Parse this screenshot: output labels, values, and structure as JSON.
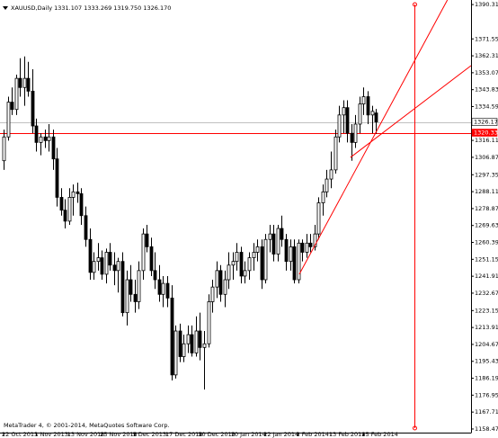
{
  "chart_data": {
    "type": "candlestick",
    "title": "XAUUSD,Daily  1331.107 1333.269 1319.750 1326.170",
    "footer": "MetaTrader 4, © 2001-2014, MetaQuotes Software Corp.",
    "categories": [
      "22 Oct 2013",
      null,
      null,
      null,
      null,
      null,
      null,
      null,
      "1 Nov 2013",
      null,
      null,
      null,
      null,
      null,
      null,
      null,
      "13 Nov 2013",
      null,
      null,
      null,
      null,
      null,
      null,
      null,
      "25 Nov 2013",
      null,
      null,
      null,
      null,
      null,
      null,
      null,
      "5 Dec 2013",
      null,
      null,
      null,
      null,
      null,
      null,
      null,
      "17 Dec 2013",
      null,
      null,
      null,
      null,
      null,
      null,
      null,
      "30 Dec 2013",
      null,
      null,
      null,
      null,
      null,
      null,
      null,
      "10 Jan 2014",
      null,
      null,
      null,
      null,
      null,
      null,
      null,
      "22 Jan 2014",
      null,
      null,
      null,
      null,
      null,
      null,
      null,
      "3 Feb 2014",
      null,
      null,
      null,
      null,
      null,
      null,
      null,
      "13 Feb 2014",
      null,
      null,
      null,
      null,
      null,
      null,
      null,
      "25 Feb 2014",
      null,
      null,
      null
    ],
    "open": [
      1305,
      1318,
      1337,
      1333,
      1350,
      1345,
      1350,
      1343,
      1324,
      1315,
      1318,
      1316,
      1318,
      1306,
      1285,
      1278,
      1272,
      1285,
      1288,
      1287,
      1275,
      1262,
      1244,
      1250,
      1252,
      1243,
      1255,
      1248,
      1245,
      1250,
      1222,
      1240,
      1232,
      1228,
      1245,
      1265,
      1258,
      1245,
      1240,
      1232,
      1238,
      1230,
      1188,
      1212,
      1198,
      1205,
      1210,
      1200,
      1212,
      1203,
      1205,
      1228,
      1236,
      1245,
      1232,
      1240,
      1248,
      1250,
      1255,
      1242,
      1245,
      1252,
      1255,
      1258,
      1240,
      1262,
      1265,
      1254,
      1268,
      1262,
      1250,
      1258,
      1240,
      1260,
      1255,
      1260,
      1258,
      1265,
      1282,
      1288,
      1295,
      1300,
      1318,
      1330,
      1334,
      1320,
      1315,
      1325,
      1336,
      1340,
      1330,
      1331.107
    ],
    "high": [
      1322,
      1340,
      1345,
      1352,
      1361,
      1362,
      1359,
      1355,
      1328,
      1320,
      1322,
      1325,
      1322,
      1312,
      1290,
      1284,
      1290,
      1292,
      1293,
      1290,
      1280,
      1268,
      1255,
      1260,
      1256,
      1257,
      1260,
      1255,
      1252,
      1255,
      1245,
      1248,
      1240,
      1250,
      1268,
      1270,
      1263,
      1255,
      1248,
      1242,
      1242,
      1237,
      1215,
      1216,
      1210,
      1215,
      1215,
      1220,
      1222,
      1212,
      1232,
      1240,
      1250,
      1248,
      1245,
      1255,
      1255,
      1260,
      1258,
      1250,
      1255,
      1260,
      1262,
      1262,
      1265,
      1270,
      1270,
      1270,
      1275,
      1265,
      1262,
      1262,
      1262,
      1262,
      1265,
      1265,
      1270,
      1285,
      1292,
      1300,
      1310,
      1322,
      1335,
      1338,
      1338,
      1325,
      1330,
      1340,
      1345,
      1343,
      1335,
      1333.269
    ],
    "low": [
      1300,
      1316,
      1330,
      1330,
      1340,
      1335,
      1340,
      1320,
      1310,
      1308,
      1312,
      1310,
      1300,
      1280,
      1275,
      1268,
      1270,
      1275,
      1282,
      1270,
      1258,
      1240,
      1240,
      1245,
      1240,
      1238,
      1245,
      1237,
      1233,
      1220,
      1215,
      1228,
      1222,
      1224,
      1240,
      1255,
      1242,
      1235,
      1228,
      1225,
      1225,
      1185,
      1186,
      1195,
      1195,
      1200,
      1198,
      1198,
      1196,
      1180,
      1203,
      1222,
      1230,
      1228,
      1225,
      1235,
      1240,
      1245,
      1238,
      1238,
      1240,
      1245,
      1250,
      1235,
      1238,
      1255,
      1250,
      1250,
      1258,
      1245,
      1245,
      1238,
      1238,
      1250,
      1252,
      1255,
      1256,
      1262,
      1275,
      1285,
      1290,
      1298,
      1315,
      1320,
      1315,
      1305,
      1312,
      1320,
      1330,
      1325,
      1320,
      1319.75
    ],
    "close": [
      1318,
      1337,
      1333,
      1350,
      1345,
      1350,
      1343,
      1324,
      1315,
      1318,
      1316,
      1318,
      1306,
      1285,
      1278,
      1272,
      1285,
      1288,
      1287,
      1275,
      1262,
      1244,
      1250,
      1252,
      1243,
      1255,
      1248,
      1245,
      1250,
      1222,
      1240,
      1232,
      1228,
      1245,
      1265,
      1258,
      1245,
      1240,
      1232,
      1238,
      1230,
      1188,
      1212,
      1198,
      1205,
      1210,
      1200,
      1212,
      1203,
      1205,
      1228,
      1236,
      1245,
      1232,
      1240,
      1248,
      1250,
      1255,
      1242,
      1245,
      1252,
      1255,
      1258,
      1240,
      1262,
      1265,
      1254,
      1268,
      1262,
      1250,
      1258,
      1240,
      1260,
      1255,
      1260,
      1258,
      1265,
      1282,
      1288,
      1295,
      1300,
      1318,
      1330,
      1334,
      1320,
      1315,
      1325,
      1336,
      1340,
      1330,
      1332,
      1326.17
    ],
    "up_color": "#ffffff",
    "down_color": "#000000",
    "ylim": [
      1156.0,
      1392.8
    ],
    "yticks": [
      {
        "value": 1390.31,
        "label": "1390.310"
      },
      {
        "value": 1371.55,
        "label": "1371.550"
      },
      {
        "value": 1362.31,
        "label": "1362.310"
      },
      {
        "value": 1353.07,
        "label": "1353.070"
      },
      {
        "value": 1343.83,
        "label": "1343.830"
      },
      {
        "value": 1334.59,
        "label": "1334.590"
      },
      {
        "value": 1316.11,
        "label": "1316.110"
      },
      {
        "value": 1306.87,
        "label": "1306.870"
      },
      {
        "value": 1297.35,
        "label": "1297.350"
      },
      {
        "value": 1288.11,
        "label": "1288.110"
      },
      {
        "value": 1278.87,
        "label": "1278.870"
      },
      {
        "value": 1269.63,
        "label": "1269.630"
      },
      {
        "value": 1260.39,
        "label": "1260.390"
      },
      {
        "value": 1251.15,
        "label": "1251.150"
      },
      {
        "value": 1241.91,
        "label": "1241.910"
      },
      {
        "value": 1232.67,
        "label": "1232.670"
      },
      {
        "value": 1223.15,
        "label": "1223.150"
      },
      {
        "value": 1213.91,
        "label": "1213.910"
      },
      {
        "value": 1204.67,
        "label": "1204.670"
      },
      {
        "value": 1195.43,
        "label": "1195.430"
      },
      {
        "value": 1186.19,
        "label": "1186.190"
      },
      {
        "value": 1176.95,
        "label": "1176.950"
      },
      {
        "value": 1167.71,
        "label": "1167.710"
      },
      {
        "value": 1158.47,
        "label": "1158.470"
      }
    ],
    "price_lines": [
      {
        "value": 1326.17,
        "label": "1326.170",
        "color": "#c0c0c0"
      },
      {
        "value": 1320.33,
        "label": "1320.330",
        "color": "#ff0000"
      }
    ],
    "trendlines": [
      {
        "from": [
          72.3,
          1243
        ],
        "to": [
          107.9,
          1390.3
        ],
        "color": "#ff0000"
      },
      {
        "from": [
          84.8,
          1306.8
        ],
        "to": [
          120.9,
          1368.2
        ],
        "color": "#ff0000"
      }
    ],
    "vline": {
      "index": 100.4,
      "color": "#ff0000"
    }
  }
}
